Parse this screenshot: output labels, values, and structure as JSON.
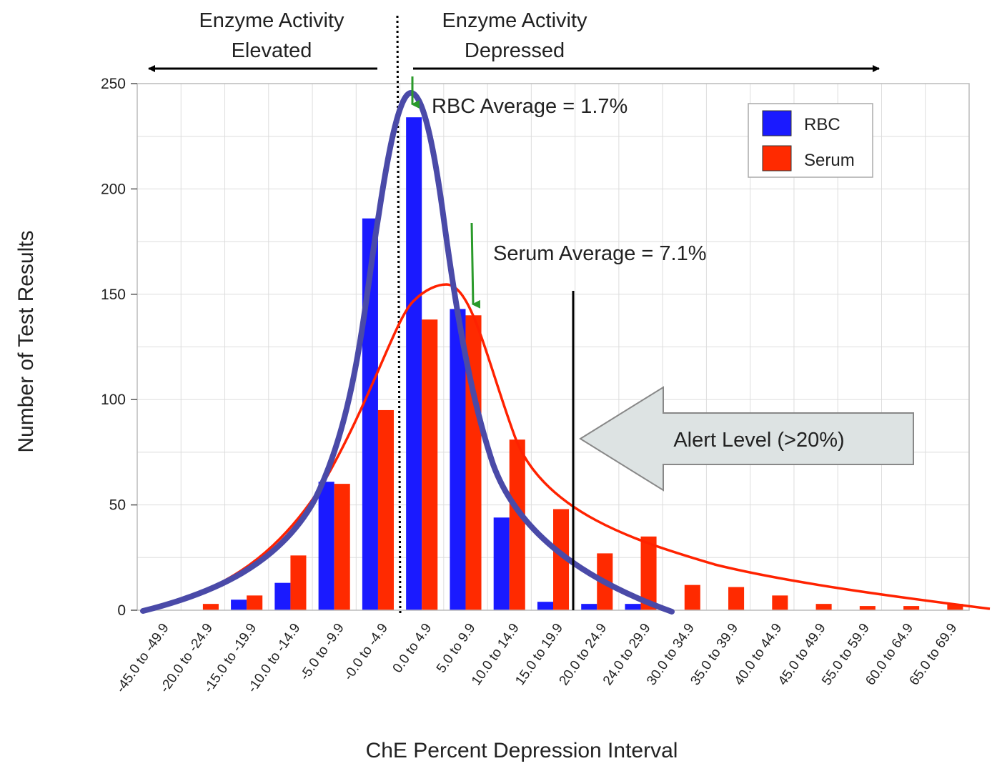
{
  "chart_data": {
    "type": "bar",
    "xlabel": "ChE Percent Depression Interval",
    "ylabel": "Number of Test Results",
    "ylim": [
      0,
      250
    ],
    "yticks": [
      0,
      50,
      100,
      150,
      200,
      250
    ],
    "grid": true,
    "legend_position": "top-right",
    "categories": [
      "-45.0 to -49.9",
      "-20.0 to -24.9",
      "-15.0 to -19.9",
      "-10.0 to -14.9",
      "-5.0 to -9.9",
      "-0.0 to -4.9",
      "0.0 to 4.9",
      "5.0 to 9.9",
      "10.0 to 14.9",
      "15.0 to 19.9",
      "20.0 to 24.9",
      "24.0 to 29.9",
      "30.0 to 34.9",
      "35.0 to 39.9",
      "40.0 to 44.9",
      "45.0 to 49.9",
      "55.0 to 59.9",
      "60.0 to 64.9",
      "65.0 to 69.9"
    ],
    "series": [
      {
        "name": "RBC",
        "color": "#1a1aff",
        "values": [
          0,
          0,
          5,
          13,
          61,
          186,
          234,
          143,
          44,
          4,
          3,
          3,
          0,
          0,
          0,
          0,
          0,
          0,
          0
        ]
      },
      {
        "name": "Serum",
        "color": "#ff2a00",
        "values": [
          0,
          3,
          7,
          26,
          60,
          95,
          138,
          140,
          81,
          48,
          27,
          35,
          12,
          11,
          7,
          3,
          2,
          2,
          3
        ]
      }
    ],
    "annotations": {
      "left_header_line1": "Enzyme Activity",
      "left_header_line2": "Elevated",
      "right_header_line1": "Enzyme Activity",
      "right_header_line2": "Depressed",
      "rbc_average": "RBC Average = 1.7%",
      "serum_average": "Serum Average = 7.1%",
      "alert_level": "Alert Level (>20%)"
    },
    "colors": {
      "rbc_curve": "#4a4aa8",
      "serum_curve": "#ff2200",
      "average_marker": "#2a9a2a",
      "alert_arrow_fill": "#dde3e3",
      "grid": "#dddddd"
    }
  }
}
